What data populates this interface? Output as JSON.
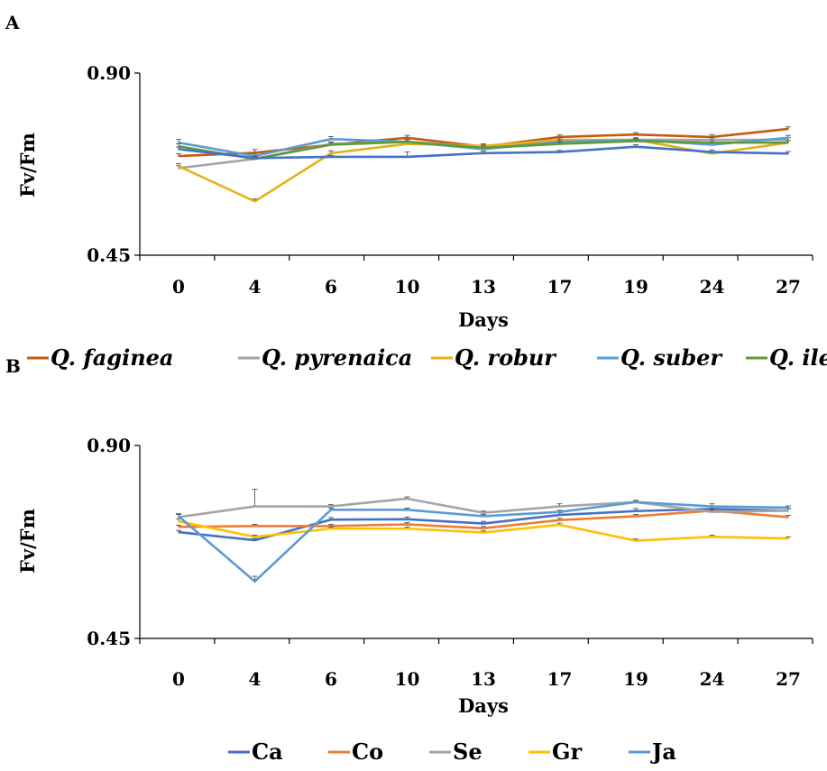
{
  "chart_data": [
    {
      "panel_label": "A",
      "type": "line",
      "xlabel": "Days",
      "ylabel": "Fv/Fm",
      "categories": [
        "0",
        "4",
        "6",
        "10",
        "13",
        "17",
        "19",
        "24",
        "27"
      ],
      "ylim": [
        0.45,
        0.9
      ],
      "yticks": [
        "0.90",
        "0.45"
      ],
      "legend_position": "bottom",
      "legend_italic": true,
      "series": [
        {
          "name": "Q. faginea",
          "color": "#c55a11",
          "values": [
            0.695,
            0.703,
            0.723,
            0.74,
            0.718,
            0.742,
            0.748,
            0.742,
            0.762
          ],
          "errors": [
            0.006,
            0.008,
            0.006,
            0.006,
            0.006,
            0.005,
            0.005,
            0.006,
            0.005
          ]
        },
        {
          "name": "Q. pyrenaica",
          "color": "#a5a5a5",
          "values": [
            0.665,
            0.688,
            0.725,
            0.73,
            0.718,
            0.73,
            0.735,
            0.735,
            0.735
          ],
          "errors": [
            0.006,
            0.005,
            0.005,
            0.005,
            0.005,
            0.005,
            0.004,
            0.005,
            0.005
          ]
        },
        {
          "name": "Q. robur",
          "color": "#e6b118",
          "values": [
            0.67,
            0.583,
            0.702,
            0.725,
            0.72,
            0.735,
            0.735,
            0.701,
            0.728
          ],
          "errors": [
            0.006,
            0.006,
            0.006,
            0.005,
            0.005,
            0.005,
            0.005,
            0.005,
            0.005
          ]
        },
        {
          "name": "Q. suber",
          "color": "#5b9bd5",
          "values": [
            0.728,
            0.695,
            0.737,
            0.73,
            0.712,
            0.73,
            0.735,
            0.723,
            0.74
          ],
          "errors": [
            0.008,
            0.006,
            0.006,
            0.006,
            0.005,
            0.005,
            0.005,
            0.006,
            0.006
          ]
        },
        {
          "name": "Q. ilex",
          "color": "#5f9a3a",
          "values": [
            0.719,
            0.688,
            0.723,
            0.73,
            0.715,
            0.725,
            0.732,
            0.728,
            0.728
          ],
          "errors": [
            0.006,
            0.006,
            0.006,
            0.005,
            0.005,
            0.005,
            0.005,
            0.005,
            0.005
          ]
        },
        {
          "name": "",
          "color": "#4472c4",
          "values": [
            0.712,
            0.69,
            0.693,
            0.693,
            0.702,
            0.705,
            0.718,
            0.705,
            0.701
          ],
          "errors": [
            0.005,
            0.005,
            0.004,
            0.012,
            0.005,
            0.004,
            0.005,
            0.005,
            0.005
          ]
        }
      ]
    },
    {
      "panel_label": "B",
      "type": "line",
      "xlabel": "Days",
      "ylabel": "Fv/Fm",
      "categories": [
        "0",
        "4",
        "6",
        "10",
        "13",
        "17",
        "19",
        "24",
        "27"
      ],
      "ylim": [
        0.45,
        0.9
      ],
      "yticks": [
        "0.90",
        "0.45"
      ],
      "legend_position": "bottom",
      "legend_italic": false,
      "series": [
        {
          "name": "Ca",
          "color": "#4472c4",
          "values": [
            0.698,
            0.679,
            0.727,
            0.728,
            0.718,
            0.738,
            0.747,
            0.752,
            0.748
          ],
          "errors": [
            0.004,
            0.004,
            0.005,
            0.005,
            0.005,
            0.005,
            0.006,
            0.005,
            0.005
          ]
        },
        {
          "name": "Co",
          "color": "#ed7d31",
          "values": [
            0.71,
            0.712,
            0.712,
            0.716,
            0.707,
            0.726,
            0.735,
            0.748,
            0.733
          ],
          "errors": [
            0.004,
            0.004,
            0.004,
            0.004,
            0.004,
            0.004,
            0.004,
            0.004,
            0.004
          ]
        },
        {
          "name": "Se",
          "color": "#a5a5a5",
          "values": [
            0.733,
            0.758,
            0.758,
            0.776,
            0.743,
            0.758,
            0.768,
            0.745,
            0.748
          ],
          "errors": [
            0.006,
            0.04,
            0.004,
            0.004,
            0.004,
            0.006,
            0.004,
            0.005,
            0.006
          ]
        },
        {
          "name": "Gr",
          "color": "#ffc000",
          "values": [
            0.723,
            0.687,
            0.706,
            0.706,
            0.697,
            0.715,
            0.678,
            0.687,
            0.683
          ],
          "errors": [
            0.006,
            0.004,
            0.004,
            0.004,
            0.004,
            0.004,
            0.004,
            0.004,
            0.004
          ]
        },
        {
          "name": "Ja",
          "color": "#5b9bd5",
          "values": [
            0.735,
            0.583,
            0.75,
            0.75,
            0.735,
            0.745,
            0.768,
            0.758,
            0.755
          ],
          "errors": [
            0.006,
            0.012,
            0.004,
            0.004,
            0.004,
            0.004,
            0.004,
            0.006,
            0.004
          ]
        }
      ]
    }
  ]
}
